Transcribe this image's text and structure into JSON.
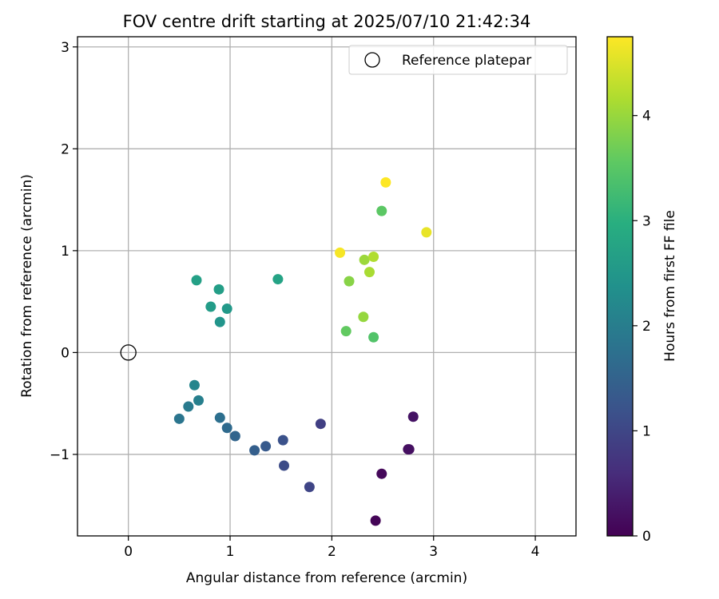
{
  "chart_data": {
    "type": "scatter",
    "title": "FOV centre drift starting at 2025/07/10 21:42:34",
    "xlabel": "Angular distance from reference (arcmin)",
    "ylabel": "Rotation from reference (arcmin)",
    "xlim": [
      -0.5,
      4.4
    ],
    "ylim": [
      -1.8,
      3.1
    ],
    "xticks": [
      0,
      1,
      2,
      3,
      4
    ],
    "yticks": [
      -1,
      0,
      1,
      2,
      3
    ],
    "xtick_labels": [
      "0",
      "1",
      "2",
      "3",
      "4"
    ],
    "ytick_labels": [
      "−1",
      "0",
      "1",
      "2",
      "3"
    ],
    "grid": true,
    "legend": {
      "position": "top-right",
      "entries": [
        "Reference platepar"
      ]
    },
    "reference_point": {
      "name": "Reference platepar",
      "x": 0,
      "y": 0
    },
    "colorbar": {
      "label": "Hours from first FF file",
      "colormap": "viridis",
      "range": [
        0,
        4.75
      ],
      "ticks": [
        0,
        1,
        2,
        3,
        4
      ],
      "tick_labels": [
        "0",
        "1",
        "2",
        "3",
        "4"
      ]
    },
    "points": [
      {
        "x": 2.43,
        "y": -1.65,
        "c": 0.05
      },
      {
        "x": 2.49,
        "y": -1.19,
        "c": 0.1
      },
      {
        "x": 2.75,
        "y": -0.95,
        "c": 0.15
      },
      {
        "x": 2.76,
        "y": -0.95,
        "c": 0.2
      },
      {
        "x": 2.8,
        "y": -0.63,
        "c": 0.25
      },
      {
        "x": 1.89,
        "y": -0.7,
        "c": 0.9
      },
      {
        "x": 1.78,
        "y": -1.32,
        "c": 1.0
      },
      {
        "x": 1.53,
        "y": -1.11,
        "c": 1.1
      },
      {
        "x": 1.52,
        "y": -0.86,
        "c": 1.2
      },
      {
        "x": 1.35,
        "y": -0.92,
        "c": 1.35
      },
      {
        "x": 1.24,
        "y": -0.96,
        "c": 1.45
      },
      {
        "x": 1.05,
        "y": -0.82,
        "c": 1.55
      },
      {
        "x": 0.97,
        "y": -0.74,
        "c": 1.65
      },
      {
        "x": 0.9,
        "y": -0.64,
        "c": 1.75
      },
      {
        "x": 0.5,
        "y": -0.65,
        "c": 1.85
      },
      {
        "x": 0.59,
        "y": -0.53,
        "c": 1.95
      },
      {
        "x": 0.69,
        "y": -0.47,
        "c": 2.05
      },
      {
        "x": 0.65,
        "y": -0.32,
        "c": 2.15
      },
      {
        "x": 0.9,
        "y": 0.3,
        "c": 2.45
      },
      {
        "x": 0.97,
        "y": 0.43,
        "c": 2.55
      },
      {
        "x": 0.81,
        "y": 0.45,
        "c": 2.6
      },
      {
        "x": 0.89,
        "y": 0.62,
        "c": 2.65
      },
      {
        "x": 0.67,
        "y": 0.71,
        "c": 2.7
      },
      {
        "x": 1.47,
        "y": 0.72,
        "c": 2.75
      },
      {
        "x": 2.41,
        "y": 0.15,
        "c": 3.45
      },
      {
        "x": 2.14,
        "y": 0.21,
        "c": 3.6
      },
      {
        "x": 2.49,
        "y": 1.39,
        "c": 3.55
      },
      {
        "x": 2.17,
        "y": 0.7,
        "c": 3.9
      },
      {
        "x": 2.31,
        "y": 0.35,
        "c": 4.0
      },
      {
        "x": 2.32,
        "y": 0.91,
        "c": 4.05
      },
      {
        "x": 2.37,
        "y": 0.79,
        "c": 4.15
      },
      {
        "x": 2.41,
        "y": 0.94,
        "c": 4.2
      },
      {
        "x": 2.93,
        "y": 1.18,
        "c": 4.6
      },
      {
        "x": 2.08,
        "y": 0.98,
        "c": 4.7
      },
      {
        "x": 2.53,
        "y": 1.67,
        "c": 4.75
      }
    ]
  }
}
